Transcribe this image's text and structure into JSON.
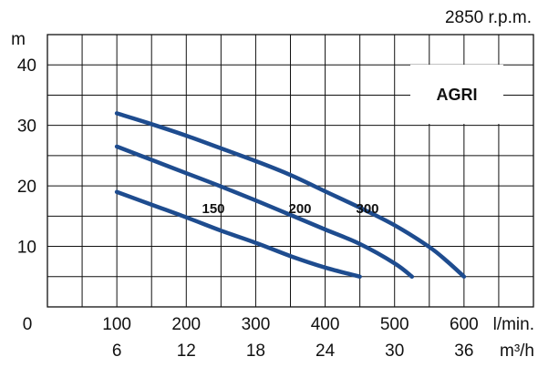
{
  "chart_data": {
    "type": "line",
    "title": "",
    "speed_label": "2850 r.p.m.",
    "ylabel": "m",
    "xlabel_primary_unit": "l/min.",
    "xlabel_secondary_unit": "m³/h",
    "x_origin_label": "0",
    "ylim": [
      0,
      45
    ],
    "xlim": [
      0,
      700
    ],
    "y_ticks": [
      10,
      20,
      30,
      40
    ],
    "x_ticks": [
      {
        "lmin": 100,
        "m3h": "6"
      },
      {
        "lmin": 200,
        "m3h": "12"
      },
      {
        "lmin": 300,
        "m3h": "18"
      },
      {
        "lmin": 400,
        "m3h": "24"
      },
      {
        "lmin": 500,
        "m3h": "30"
      },
      {
        "lmin": 600,
        "m3h": "36"
      }
    ],
    "grid": true,
    "badge": "AGRI",
    "colors": {
      "curve": "#1e4c8f",
      "badge_text": "#1e4c8f",
      "grid": "#111111"
    },
    "series": [
      {
        "name": "150",
        "x": [
          100,
          150,
          200,
          250,
          300,
          350,
          400,
          450
        ],
        "y": [
          19,
          16.9,
          14.8,
          12.6,
          10.6,
          8.4,
          6.5,
          5
        ]
      },
      {
        "name": "200",
        "x": [
          100,
          150,
          200,
          250,
          300,
          350,
          400,
          450,
          500,
          525
        ],
        "y": [
          26.5,
          24.3,
          22.1,
          19.9,
          17.6,
          15.2,
          12.8,
          10.4,
          7.2,
          5
        ]
      },
      {
        "name": "300",
        "x": [
          100,
          150,
          200,
          250,
          300,
          350,
          400,
          450,
          500,
          550,
          575,
          600
        ],
        "y": [
          32,
          30.2,
          28.3,
          26.2,
          24.1,
          21.8,
          19.1,
          16.4,
          13.5,
          9.9,
          7.6,
          5
        ]
      }
    ]
  }
}
